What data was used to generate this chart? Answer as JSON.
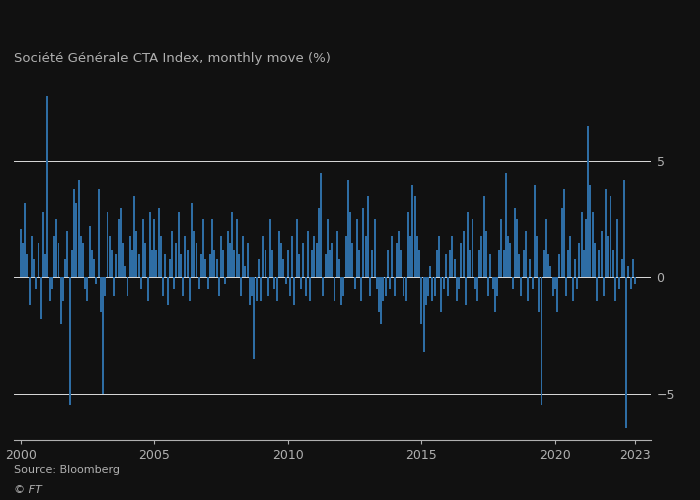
{
  "title": "Société Générale CTA Index, monthly move (%)",
  "source": "Source: Bloomberg",
  "copyright": "© FT",
  "bar_color": "#2e6da4",
  "background_color": "#111111",
  "text_color": "#b0b0b0",
  "gridline_color": "#ffffff",
  "ylim": [
    -7.0,
    8.5
  ],
  "yticks": [
    -5,
    0,
    5
  ],
  "xlabel_years": [
    2000,
    2005,
    2010,
    2015,
    2020,
    2023
  ],
  "monthly_data": [
    2.1,
    1.5,
    3.2,
    1.0,
    -1.2,
    1.8,
    0.8,
    -0.5,
    1.5,
    -1.8,
    2.8,
    1.0,
    7.8,
    -1.0,
    -0.5,
    1.8,
    2.5,
    1.5,
    -2.0,
    -1.0,
    0.8,
    2.0,
    -5.5,
    1.2,
    3.8,
    3.2,
    4.2,
    1.8,
    1.5,
    -0.5,
    -1.0,
    2.2,
    1.2,
    0.8,
    -0.3,
    3.8,
    -1.5,
    -5.0,
    -0.8,
    2.8,
    1.8,
    1.2,
    -0.8,
    1.0,
    2.5,
    3.0,
    1.5,
    0.5,
    -0.8,
    1.8,
    1.2,
    3.5,
    2.0,
    1.0,
    -0.5,
    2.5,
    1.5,
    -1.0,
    2.8,
    1.2,
    2.5,
    1.2,
    3.0,
    1.8,
    -0.8,
    1.0,
    -1.2,
    0.8,
    2.0,
    -0.5,
    1.5,
    2.8,
    1.0,
    -0.8,
    1.8,
    1.2,
    -1.0,
    3.2,
    2.0,
    1.5,
    -0.5,
    1.0,
    2.5,
    0.8,
    -0.5,
    1.0,
    2.5,
    1.2,
    0.8,
    -0.8,
    1.8,
    1.2,
    -0.3,
    2.0,
    1.5,
    2.8,
    1.2,
    2.5,
    1.0,
    -0.8,
    1.8,
    0.5,
    1.5,
    -1.2,
    -0.8,
    -3.5,
    -1.0,
    0.8,
    -1.0,
    1.8,
    1.2,
    -0.8,
    2.5,
    1.2,
    -0.5,
    -1.0,
    2.0,
    1.5,
    0.8,
    -0.3,
    1.2,
    -0.8,
    1.8,
    -1.2,
    2.5,
    1.0,
    -0.5,
    1.5,
    -0.8,
    2.0,
    -1.0,
    1.2,
    1.8,
    1.5,
    3.0,
    4.5,
    -0.8,
    1.0,
    2.5,
    1.2,
    1.5,
    -1.0,
    2.0,
    0.8,
    -1.2,
    -0.8,
    1.8,
    4.2,
    2.8,
    1.5,
    -0.5,
    2.5,
    1.2,
    -1.0,
    3.0,
    1.8,
    3.5,
    -0.8,
    1.2,
    2.5,
    -0.5,
    -1.5,
    -2.0,
    -1.0,
    -0.8,
    1.2,
    -0.5,
    1.8,
    -0.8,
    1.5,
    2.0,
    1.2,
    -0.8,
    -1.0,
    2.8,
    1.8,
    4.0,
    3.5,
    1.8,
    1.2,
    -2.0,
    -3.2,
    -1.2,
    -0.8,
    0.5,
    -1.0,
    -0.8,
    1.2,
    1.8,
    -1.5,
    -0.5,
    1.0,
    -0.8,
    1.2,
    1.8,
    0.8,
    -1.0,
    -0.5,
    1.5,
    2.0,
    -1.2,
    2.8,
    1.2,
    2.5,
    -0.5,
    -1.0,
    1.2,
    1.8,
    3.5,
    2.0,
    -0.8,
    1.0,
    -0.5,
    -1.5,
    -0.8,
    1.2,
    2.5,
    1.2,
    4.5,
    1.8,
    1.5,
    -0.5,
    3.0,
    2.5,
    1.0,
    -0.8,
    1.2,
    2.0,
    -1.0,
    0.8,
    -0.5,
    4.0,
    1.8,
    -1.5,
    -5.5,
    1.2,
    2.5,
    1.0,
    0.5,
    -0.8,
    -0.5,
    -1.5,
    1.0,
    3.0,
    3.8,
    -0.8,
    1.2,
    1.8,
    -1.0,
    0.8,
    -0.5,
    1.5,
    2.8,
    1.2,
    2.5,
    6.5,
    4.0,
    2.8,
    1.5,
    -1.0,
    1.2,
    2.0,
    -0.8,
    3.8,
    1.8,
    3.5,
    1.2,
    -1.0,
    2.5,
    -0.5,
    0.8,
    4.2,
    -6.5,
    0.5,
    -0.5,
    0.8,
    -0.3
  ],
  "start_year": 2000,
  "start_month": 1
}
